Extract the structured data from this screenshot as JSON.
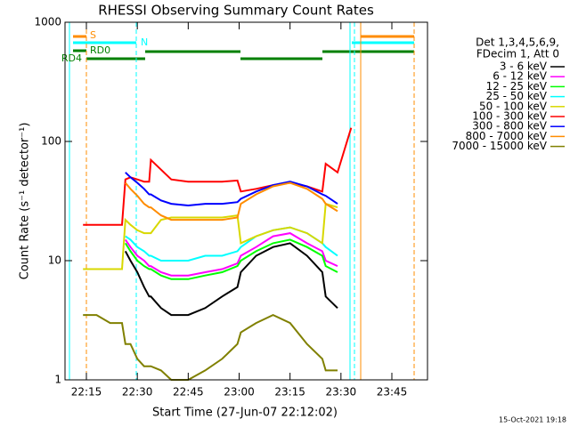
{
  "chart_data": {
    "type": "line",
    "title": "RHESSI Observing Summary Count Rates",
    "xlabel": "Start Time (27-Jun-07 22:12:02)",
    "ylabel": "Count Rate (s⁻¹ detector⁻¹)",
    "legend_header": [
      "Det 1,3,4,5,6,9,",
      "FDecim 1, Att 0"
    ],
    "footer": "15-Oct-2021 19:18",
    "annotations": [
      "S",
      "N",
      "RD0",
      "RD4"
    ],
    "log_y": true,
    "xlim": [
      8.7,
      115.5
    ],
    "ylim": [
      1,
      1000
    ],
    "xticks": [
      {
        "value": 15,
        "label": "22:15"
      },
      {
        "value": 30,
        "label": "22:30"
      },
      {
        "value": 45,
        "label": "22:45"
      },
      {
        "value": 60,
        "label": "23:00"
      },
      {
        "value": 75,
        "label": "23:15"
      },
      {
        "value": 90,
        "label": "23:30"
      },
      {
        "value": 105,
        "label": "23:45"
      }
    ],
    "yticks": [
      1,
      10,
      100,
      1000
    ],
    "x": [
      14,
      18,
      22,
      25.5,
      26.5,
      28,
      30,
      32,
      33.5,
      34,
      37,
      40,
      45,
      50,
      55,
      59.5,
      60.5,
      65,
      70,
      75,
      80,
      84.5,
      85.5,
      89,
      93
    ],
    "series": [
      {
        "name": "3 - 6 keV",
        "color": "#000000",
        "values": [
          null,
          null,
          null,
          null,
          12,
          10,
          8,
          6,
          5,
          5,
          4,
          3.5,
          3.5,
          4,
          5,
          6,
          8,
          11,
          13,
          14,
          11,
          8,
          5,
          4,
          null
        ]
      },
      {
        "name": "6 - 12 keV",
        "color": "#ff00ff",
        "values": [
          null,
          null,
          null,
          null,
          15,
          13,
          11,
          10,
          9,
          9,
          8,
          7.5,
          7.5,
          8,
          8.5,
          9.5,
          11,
          13,
          16,
          17,
          14,
          12,
          10,
          9,
          null
        ]
      },
      {
        "name": "12 - 25 keV",
        "color": "#00ff00",
        "values": [
          null,
          null,
          null,
          null,
          14,
          12,
          10,
          9,
          8.5,
          8.5,
          7.5,
          7,
          7,
          7.5,
          8,
          9,
          10,
          12,
          14,
          15,
          13,
          11,
          9,
          8,
          null
        ]
      },
      {
        "name": "25 - 50 keV",
        "color": "#00ffff",
        "values": [
          null,
          null,
          null,
          null,
          16,
          15,
          13,
          12,
          11,
          11,
          10,
          10,
          10,
          11,
          11,
          12,
          13,
          16,
          18,
          19,
          17,
          14,
          13,
          11,
          null
        ]
      },
      {
        "name": "50 - 100 keV",
        "color": "#d8d800",
        "values": [
          8.5,
          8.5,
          8.5,
          8.5,
          22,
          20,
          18,
          17,
          17,
          17,
          22,
          23,
          23,
          23,
          23,
          24,
          14,
          16,
          18,
          19,
          17,
          14,
          30,
          28,
          null
        ]
      },
      {
        "name": "100 - 300 keV",
        "color": "#ff0000",
        "values": [
          20,
          20,
          20,
          20,
          48,
          50,
          48,
          46,
          46,
          70,
          58,
          48,
          46,
          46,
          46,
          47,
          38,
          40,
          43,
          45,
          42,
          38,
          65,
          55,
          130
        ]
      },
      {
        "name": "300 - 800 keV",
        "color": "#0000ff",
        "values": [
          null,
          null,
          null,
          null,
          55,
          50,
          45,
          40,
          36,
          36,
          32,
          30,
          29,
          30,
          30,
          31,
          33,
          38,
          43,
          46,
          42,
          36,
          35,
          30,
          null
        ]
      },
      {
        "name": "800 - 7000 keV",
        "color": "#ff8c00",
        "values": [
          null,
          null,
          null,
          null,
          45,
          40,
          35,
          30,
          28,
          28,
          24,
          22,
          22,
          22,
          22,
          23,
          30,
          36,
          42,
          45,
          40,
          33,
          30,
          26,
          null
        ]
      },
      {
        "name": "7000 - 15000 keV",
        "color": "#808000",
        "values": [
          3.5,
          3.5,
          3,
          3,
          2,
          2,
          1.5,
          1.3,
          1.3,
          1.3,
          1.2,
          1,
          1,
          1.2,
          1.5,
          2,
          2.5,
          3,
          3.5,
          3,
          2,
          1.5,
          1.2,
          1.2,
          null
        ]
      }
    ]
  }
}
